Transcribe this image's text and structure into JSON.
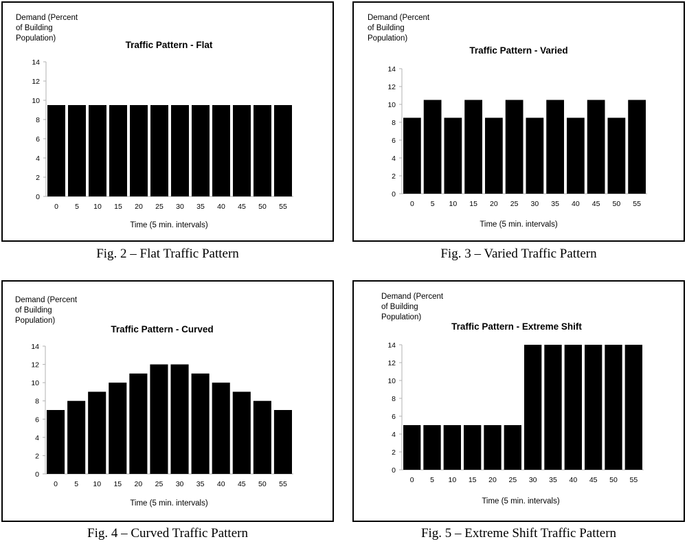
{
  "figures": [
    {
      "caption": "Fig. 2 – Flat Traffic Pattern",
      "ylabel_lines": [
        "Demand (Percent",
        "of Building",
        "Population)"
      ],
      "chart_data": {
        "type": "bar",
        "title": "Traffic Pattern - Flat",
        "xlabel": "Time (5 min. intervals)",
        "ylabel": "Demand (Percent of Building Population)",
        "categories": [
          "0",
          "5",
          "10",
          "15",
          "20",
          "25",
          "30",
          "35",
          "40",
          "45",
          "50",
          "55"
        ],
        "values": [
          9.5,
          9.5,
          9.5,
          9.5,
          9.5,
          9.5,
          9.5,
          9.5,
          9.5,
          9.5,
          9.5,
          9.5
        ],
        "yticks": [
          "0",
          "2",
          "4",
          "6",
          "8",
          "10",
          "12",
          "14"
        ],
        "ylim": [
          0,
          14
        ],
        "bar_color": "#000000",
        "grid": false,
        "legend": "none"
      }
    },
    {
      "caption": "Fig. 3 – Varied Traffic Pattern",
      "ylabel_lines": [
        "Demand (Percent",
        "of Building",
        "Population)"
      ],
      "chart_data": {
        "type": "bar",
        "title": "Traffic Pattern - Varied",
        "xlabel": "Time (5 min. intervals)",
        "ylabel": "Demand (Percent of Building Population)",
        "categories": [
          "0",
          "5",
          "10",
          "15",
          "20",
          "25",
          "30",
          "35",
          "40",
          "45",
          "50",
          "55"
        ],
        "values": [
          8.5,
          10.5,
          8.5,
          10.5,
          8.5,
          10.5,
          8.5,
          10.5,
          8.5,
          10.5,
          8.5,
          10.5
        ],
        "yticks": [
          "0",
          "2",
          "4",
          "6",
          "8",
          "10",
          "12",
          "14"
        ],
        "ylim": [
          0,
          14
        ],
        "bar_color": "#000000",
        "grid": false,
        "legend": "none"
      }
    },
    {
      "caption": "Fig. 4 – Curved Traffic Pattern",
      "ylabel_lines": [
        "Demand (Percent",
        "of Building",
        "Population)"
      ],
      "chart_data": {
        "type": "bar",
        "title": "Traffic Pattern - Curved",
        "xlabel": "Time (5 min. intervals)",
        "ylabel": "Demand (Percent of Building Population)",
        "categories": [
          "0",
          "5",
          "10",
          "15",
          "20",
          "25",
          "30",
          "35",
          "40",
          "45",
          "50",
          "55"
        ],
        "values": [
          7,
          8,
          9,
          10,
          11,
          12,
          12,
          11,
          10,
          9,
          8,
          7
        ],
        "yticks": [
          "0",
          "2",
          "4",
          "6",
          "8",
          "10",
          "12",
          "14"
        ],
        "ylim": [
          0,
          14
        ],
        "bar_color": "#000000",
        "grid": false,
        "legend": "none"
      }
    },
    {
      "caption": "Fig. 5 – Extreme Shift Traffic Pattern",
      "ylabel_lines": [
        "Demand (Percent",
        "of Building",
        "Population)"
      ],
      "chart_data": {
        "type": "bar",
        "title": "Traffic Pattern - Extreme Shift",
        "xlabel": "Time (5 min. intervals)",
        "ylabel": "Demand (Percent of Building Population)",
        "categories": [
          "0",
          "5",
          "10",
          "15",
          "20",
          "25",
          "30",
          "35",
          "40",
          "45",
          "50",
          "55"
        ],
        "values": [
          5,
          5,
          5,
          5,
          5,
          5,
          14,
          14,
          14,
          14,
          14,
          14
        ],
        "yticks": [
          "0",
          "2",
          "4",
          "6",
          "8",
          "10",
          "12",
          "14"
        ],
        "ylim": [
          0,
          14
        ],
        "bar_color": "#000000",
        "grid": false,
        "legend": "none"
      }
    }
  ]
}
